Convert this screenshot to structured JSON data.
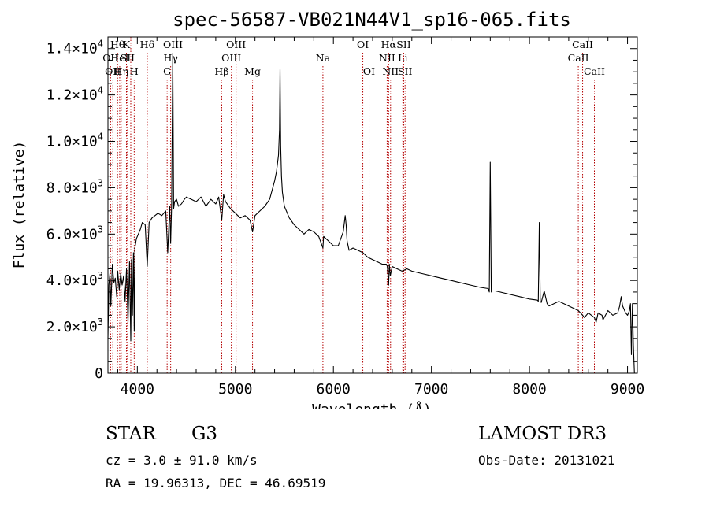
{
  "chart_data": {
    "type": "line",
    "title": "spec-56587-VB021N44V1_sp16-065.fits",
    "xlabel": "Wavelength (Å)",
    "ylabel": "Flux (relative)",
    "xlim": [
      3700,
      9100
    ],
    "ylim": [
      0,
      14500
    ],
    "x_ticks": [
      {
        "value": 4000,
        "label": "4000"
      },
      {
        "value": 5000,
        "label": "5000"
      },
      {
        "value": 6000,
        "label": "6000"
      },
      {
        "value": 7000,
        "label": "7000"
      },
      {
        "value": 8000,
        "label": "8000"
      },
      {
        "value": 9000,
        "label": "9000"
      }
    ],
    "y_ticks": [
      {
        "value": 0,
        "mantissa": "0",
        "exponent": ""
      },
      {
        "value": 2000,
        "mantissa": "2.0×10",
        "exponent": "3"
      },
      {
        "value": 4000,
        "mantissa": "4.0×10",
        "exponent": "3"
      },
      {
        "value": 6000,
        "mantissa": "6.0×10",
        "exponent": "3"
      },
      {
        "value": 8000,
        "mantissa": "8.0×10",
        "exponent": "3"
      },
      {
        "value": 10000,
        "mantissa": "1.0×10",
        "exponent": "4"
      },
      {
        "value": 12000,
        "mantissa": "1.2×10",
        "exponent": "4"
      },
      {
        "value": 14000,
        "mantissa": "1.4×10",
        "exponent": "4"
      }
    ],
    "series": [
      {
        "name": "flux",
        "x": [
          3700,
          3710,
          3720,
          3730,
          3745,
          3760,
          3775,
          3790,
          3800,
          3815,
          3830,
          3845,
          3860,
          3875,
          3890,
          3905,
          3920,
          3933,
          3940,
          3950,
          3960,
          3968,
          3975,
          3990,
          4010,
          4030,
          4050,
          4080,
          4101,
          4120,
          4150,
          4180,
          4210,
          4250,
          4290,
          4310,
          4330,
          4340,
          4350,
          4361,
          4370,
          4380,
          4400,
          4420,
          4450,
          4480,
          4500,
          4550,
          4600,
          4650,
          4700,
          4750,
          4800,
          4830,
          4861,
          4880,
          4900,
          4950,
          5000,
          5050,
          5100,
          5150,
          5175,
          5200,
          5250,
          5300,
          5350,
          5400,
          5420,
          5440,
          5450,
          5456,
          5462,
          5470,
          5480,
          5500,
          5550,
          5600,
          5650,
          5700,
          5750,
          5800,
          5850,
          5893,
          5900,
          5950,
          6000,
          6050,
          6100,
          6120,
          6130,
          6140,
          6160,
          6200,
          6250,
          6300,
          6350,
          6400,
          6450,
          6500,
          6540,
          6550,
          6563,
          6570,
          6580,
          6600,
          6650,
          6700,
          6750,
          6800,
          6900,
          7000,
          7100,
          7200,
          7300,
          7400,
          7500,
          7580,
          7590,
          7600,
          7610,
          7620,
          7650,
          7700,
          7800,
          7900,
          8000,
          8080,
          8090,
          8100,
          8110,
          8120,
          8150,
          8180,
          8190,
          8200,
          8300,
          8400,
          8498,
          8520,
          8542,
          8560,
          8600,
          8662,
          8680,
          8700,
          8740,
          8750,
          8800,
          8850,
          8900,
          8920,
          8935,
          8950,
          8980,
          9000,
          9020,
          9030,
          9040,
          9050,
          9060,
          9070
        ],
        "values": [
          1500,
          3800,
          4300,
          2900,
          4700,
          3900,
          4100,
          3300,
          4400,
          3600,
          4300,
          3800,
          4200,
          3100,
          4500,
          2200,
          4800,
          1400,
          4900,
          2500,
          5200,
          1800,
          5400,
          5800,
          6000,
          6200,
          6500,
          6400,
          4600,
          6500,
          6700,
          6800,
          6900,
          6800,
          7000,
          5200,
          7200,
          5600,
          7300,
          13800,
          7100,
          7400,
          7500,
          7200,
          7300,
          7500,
          7600,
          7500,
          7400,
          7600,
          7200,
          7500,
          7300,
          7600,
          6600,
          7700,
          7400,
          7100,
          6900,
          6700,
          6800,
          6600,
          6100,
          6800,
          7000,
          7200,
          7500,
          8300,
          8700,
          9400,
          10500,
          13100,
          9800,
          8500,
          7800,
          7200,
          6700,
          6400,
          6200,
          6000,
          6200,
          6100,
          5900,
          5400,
          5900,
          5700,
          5500,
          5500,
          6100,
          6800,
          6400,
          5700,
          5300,
          5400,
          5300,
          5200,
          5000,
          4900,
          4800,
          4700,
          4700,
          4600,
          3800,
          4700,
          4200,
          4600,
          4500,
          4400,
          4500,
          4400,
          4300,
          4200,
          4100,
          4000,
          3900,
          3800,
          3700,
          3650,
          3500,
          9100,
          3500,
          3550,
          3550,
          3500,
          3400,
          3300,
          3200,
          3150,
          3100,
          6500,
          3100,
          3050,
          3550,
          3000,
          2950,
          2900,
          3100,
          2900,
          2700,
          2600,
          2500,
          2400,
          2600,
          2400,
          2200,
          2600,
          2500,
          2300,
          2700,
          2500,
          2600,
          2900,
          3300,
          2900,
          2600,
          2500,
          2700,
          3000,
          800,
          3000,
          1200,
          0
        ]
      }
    ],
    "lines": [
      {
        "x": 3727,
        "label": "OII",
        "row": 2
      },
      {
        "x": 3750,
        "label": "OII",
        "row": 3
      },
      {
        "x": 3798,
        "label": "Hθ",
        "row": 1
      },
      {
        "x": 3820,
        "label": "HeI",
        "row": 2
      },
      {
        "x": 3835,
        "label": "Hη",
        "row": 3
      },
      {
        "x": 3889,
        "label": "K",
        "row": 1
      },
      {
        "x": 3900,
        "label": "SII",
        "row": 2
      },
      {
        "x": 3933,
        "label": "",
        "row": 0
      },
      {
        "x": 3968,
        "label": "H",
        "row": 3
      },
      {
        "x": 4101,
        "label": "Hδ",
        "row": 1
      },
      {
        "x": 4304,
        "label": "G",
        "row": 3
      },
      {
        "x": 4340,
        "label": "Hγ",
        "row": 2
      },
      {
        "x": 4363,
        "label": "OIII",
        "row": 1
      },
      {
        "x": 4861,
        "label": "Hβ",
        "row": 3
      },
      {
        "x": 4959,
        "label": "OIII",
        "row": 2
      },
      {
        "x": 5007,
        "label": "OIII",
        "row": 1
      },
      {
        "x": 5175,
        "label": "Mg",
        "row": 3
      },
      {
        "x": 5893,
        "label": "Na",
        "row": 2
      },
      {
        "x": 6300,
        "label": "OI",
        "row": 1
      },
      {
        "x": 6364,
        "label": "OI",
        "row": 3
      },
      {
        "x": 6548,
        "label": "NII",
        "row": 2
      },
      {
        "x": 6563,
        "label": "Hα",
        "row": 1
      },
      {
        "x": 6583,
        "label": "NII",
        "row": 3
      },
      {
        "x": 6708,
        "label": "Li",
        "row": 2
      },
      {
        "x": 6717,
        "label": "SII",
        "row": 1
      },
      {
        "x": 6731,
        "label": "SII",
        "row": 3
      },
      {
        "x": 8498,
        "label": "CaII",
        "row": 2
      },
      {
        "x": 8542,
        "label": "CaII",
        "row": 1
      },
      {
        "x": 8662,
        "label": "CaII",
        "row": 3
      }
    ]
  },
  "info": {
    "object_class": "STAR",
    "subclass": "G3",
    "redshift": "cz = 3.0 ± 91.0 km/s",
    "coords": "RA =  19.96313, DEC =  46.69519",
    "survey": "LAMOST DR3",
    "obs_date": "Obs-Date: 20131021"
  },
  "colors": {
    "line_marker": "#b30000",
    "spectrum": "#000000",
    "axes": "#000000"
  }
}
